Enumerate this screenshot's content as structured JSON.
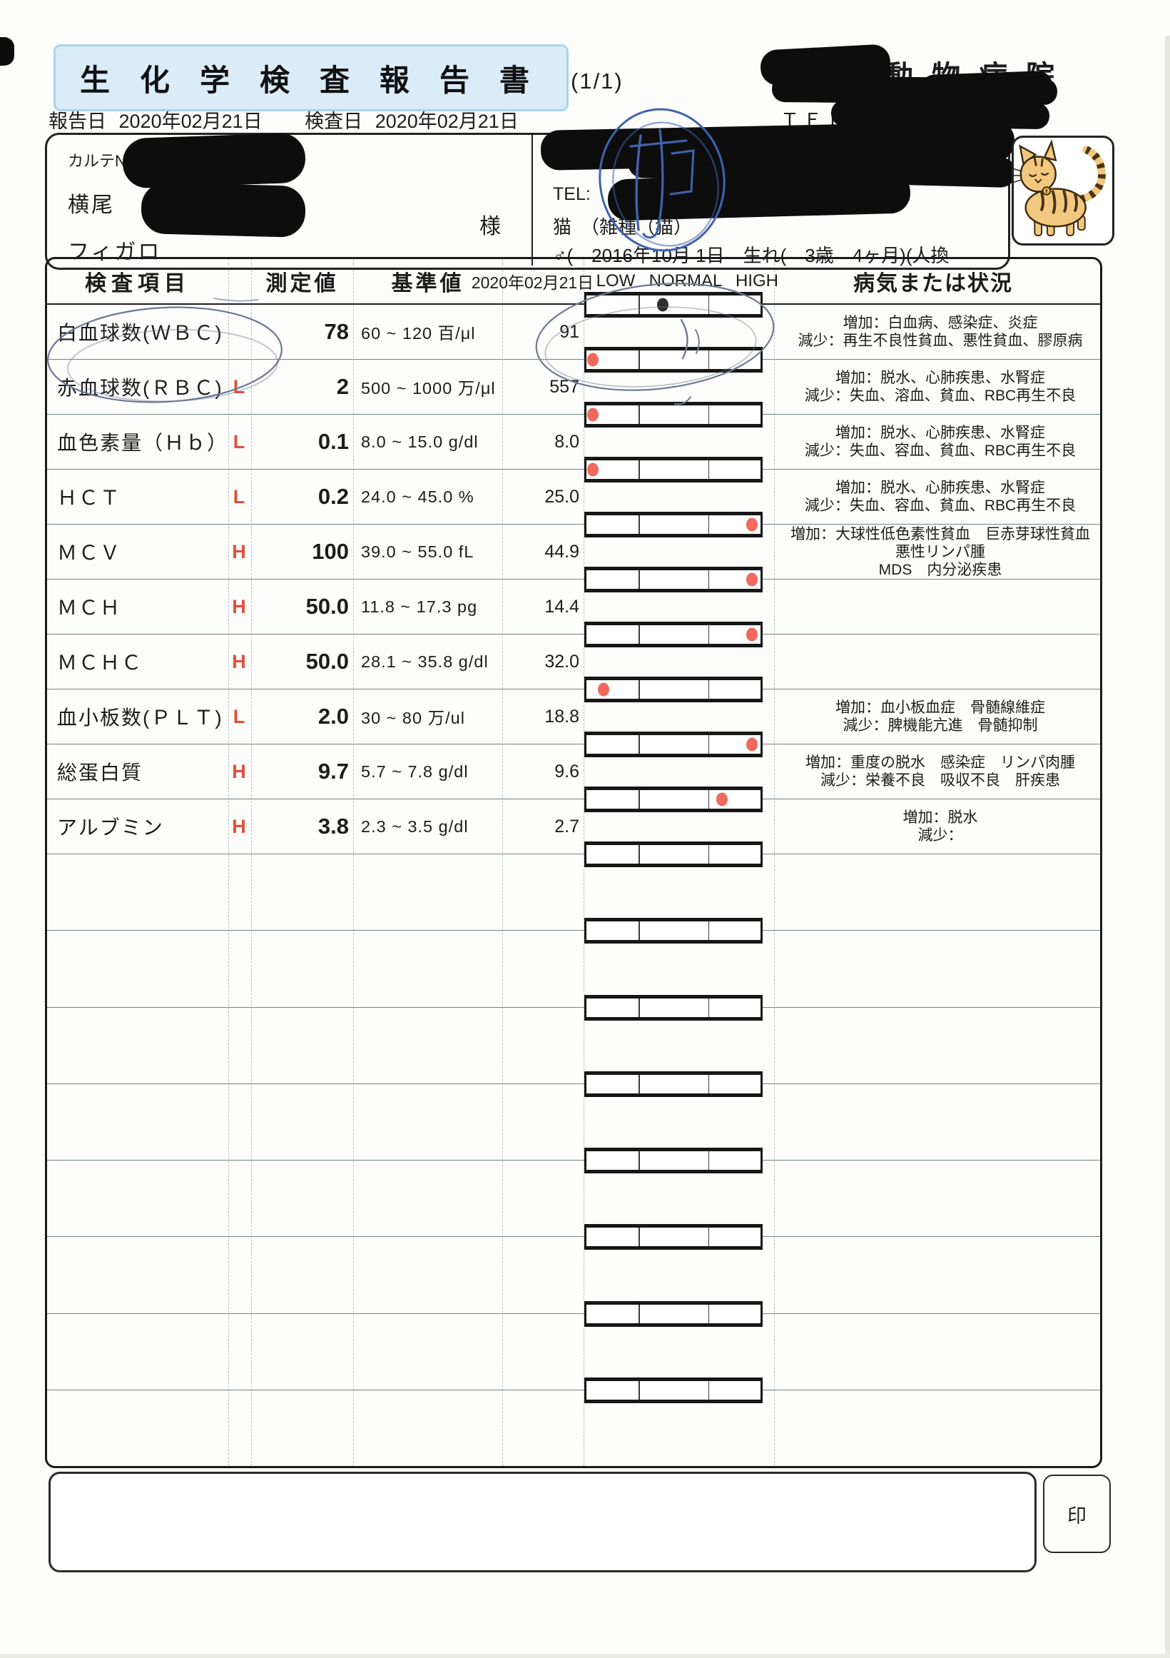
{
  "header": {
    "title": "生化学検査報告書",
    "page_no": "(1/1)",
    "report_date_label": "報告日",
    "report_date": "2020年02月21日",
    "test_date_label": "検査日",
    "test_date": "2020年02月21日",
    "hospital_name_suffix": "動物病院",
    "hospital_tel_label": "ＴＥＬ：",
    "colors": {
      "title_box_bg": "#d9ecf8",
      "title_box_border": "#abd3ec"
    }
  },
  "patient": {
    "chart_no_label": "カルテNO",
    "owner_surname": "横尾",
    "honorific": "様",
    "pet_name": "フィガロ",
    "tel_label": "TEL:",
    "species_line": "猫　（雑種（猫）",
    "close_paren": ")",
    "sex_birth_line": "♂(　2016年10月 1日　生れ(　3歳　4ヶ月)(人換"
  },
  "table": {
    "headers": {
      "item": "検査項目",
      "value": "測定値",
      "reference": "基準値",
      "date": "2020年02月21日",
      "low": "LOW",
      "normal": "NORMAL",
      "high": "HIGH",
      "disease": "病気または状況"
    },
    "colors": {
      "flag": "#e0503c",
      "dot_red": "#f0695c",
      "dot_black": "#2e2e2e"
    },
    "rows": [
      {
        "item": "白血球数(ＷＢＣ)",
        "flag": "",
        "value": "78",
        "reference": "60 ~ 120 百/μl",
        "gauge": {
          "value": "91",
          "dot": 0.44,
          "dot_color": "black"
        },
        "diseases": [
          "増加：白血病、感染症、炎症",
          "減少：再生不良性貧血、悪性貧血、膠原病"
        ]
      },
      {
        "item": "赤血球数(ＲＢＣ)",
        "flag": "L",
        "value": "2",
        "reference": "500 ~ 1000 万/μl",
        "gauge": {
          "value": "557",
          "dot": 0.035,
          "dot_color": "red"
        },
        "diseases": [
          "増加：脱水、心肺疾患、水腎症",
          "減少：失血、溶血、貧血、RBC再生不良"
        ]
      },
      {
        "item": "血色素量（Ｈｂ）",
        "flag": "L",
        "value": "0.1",
        "reference": "8.0 ~ 15.0 g/dl",
        "gauge": {
          "value": "8.0",
          "dot": 0.035,
          "dot_color": "red"
        },
        "diseases": [
          "増加：脱水、心肺疾患、水腎症",
          "減少：失血、容血、貧血、RBC再生不良"
        ]
      },
      {
        "item": "ＨＣＴ",
        "flag": "L",
        "value": "0.2",
        "reference": "24.0 ~ 45.0 %",
        "gauge": {
          "value": "25.0",
          "dot": 0.035,
          "dot_color": "red"
        },
        "diseases": [
          "増加：脱水、心肺疾患、水腎症",
          "減少：失血、容血、貧血、RBC再生不良"
        ]
      },
      {
        "item": "ＭＣＶ",
        "flag": "H",
        "value": "100",
        "reference": "39.0 ~ 55.0 fL",
        "gauge": {
          "value": "44.9",
          "dot": 0.95,
          "dot_color": "red"
        },
        "diseases": [
          "増加：大球性低色素性貧血　巨赤芽球性貧血",
          "悪性リンパ腫",
          "MDS　内分泌疾患"
        ]
      },
      {
        "item": "ＭＣＨ",
        "flag": "H",
        "value": "50.0",
        "reference": "11.8 ~ 17.3 pg",
        "gauge": {
          "value": "14.4",
          "dot": 0.95,
          "dot_color": "red"
        },
        "diseases": []
      },
      {
        "item": "ＭＣＨＣ",
        "flag": "H",
        "value": "50.0",
        "reference": "28.1 ~ 35.8 g/dl",
        "gauge": {
          "value": "32.0",
          "dot": 0.95,
          "dot_color": "red"
        },
        "diseases": []
      },
      {
        "item": "血小板数(ＰＬＴ)",
        "flag": "L",
        "value": "2.0",
        "reference": "30 ~ 80 万/ul",
        "gauge": {
          "value": "18.8",
          "dot": 0.1,
          "dot_color": "red"
        },
        "diseases": [
          "増加：血小板血症　骨髄線維症",
          "減少：脾機能亢進　骨髄抑制"
        ]
      },
      {
        "item": "総蛋白質",
        "flag": "H",
        "value": "9.7",
        "reference": "5.7 ~ 7.8 g/dl",
        "gauge": {
          "value": "9.6",
          "dot": 0.95,
          "dot_color": "red"
        },
        "diseases": [
          "増加：重度の脱水　感染症　リンパ肉腫",
          "減少：栄養不良　吸収不良　肝疾患"
        ]
      },
      {
        "item": "アルブミン",
        "flag": "H",
        "value": "3.8",
        "reference": "2.3 ~ 3.5 g/dl",
        "gauge": {
          "value": "2.7",
          "dot": 0.78,
          "dot_color": "red"
        },
        "diseases": [
          "増加：脱水",
          "減少："
        ]
      }
    ],
    "empty_row_count": 8
  },
  "footer": {
    "stamp_label": "印"
  }
}
